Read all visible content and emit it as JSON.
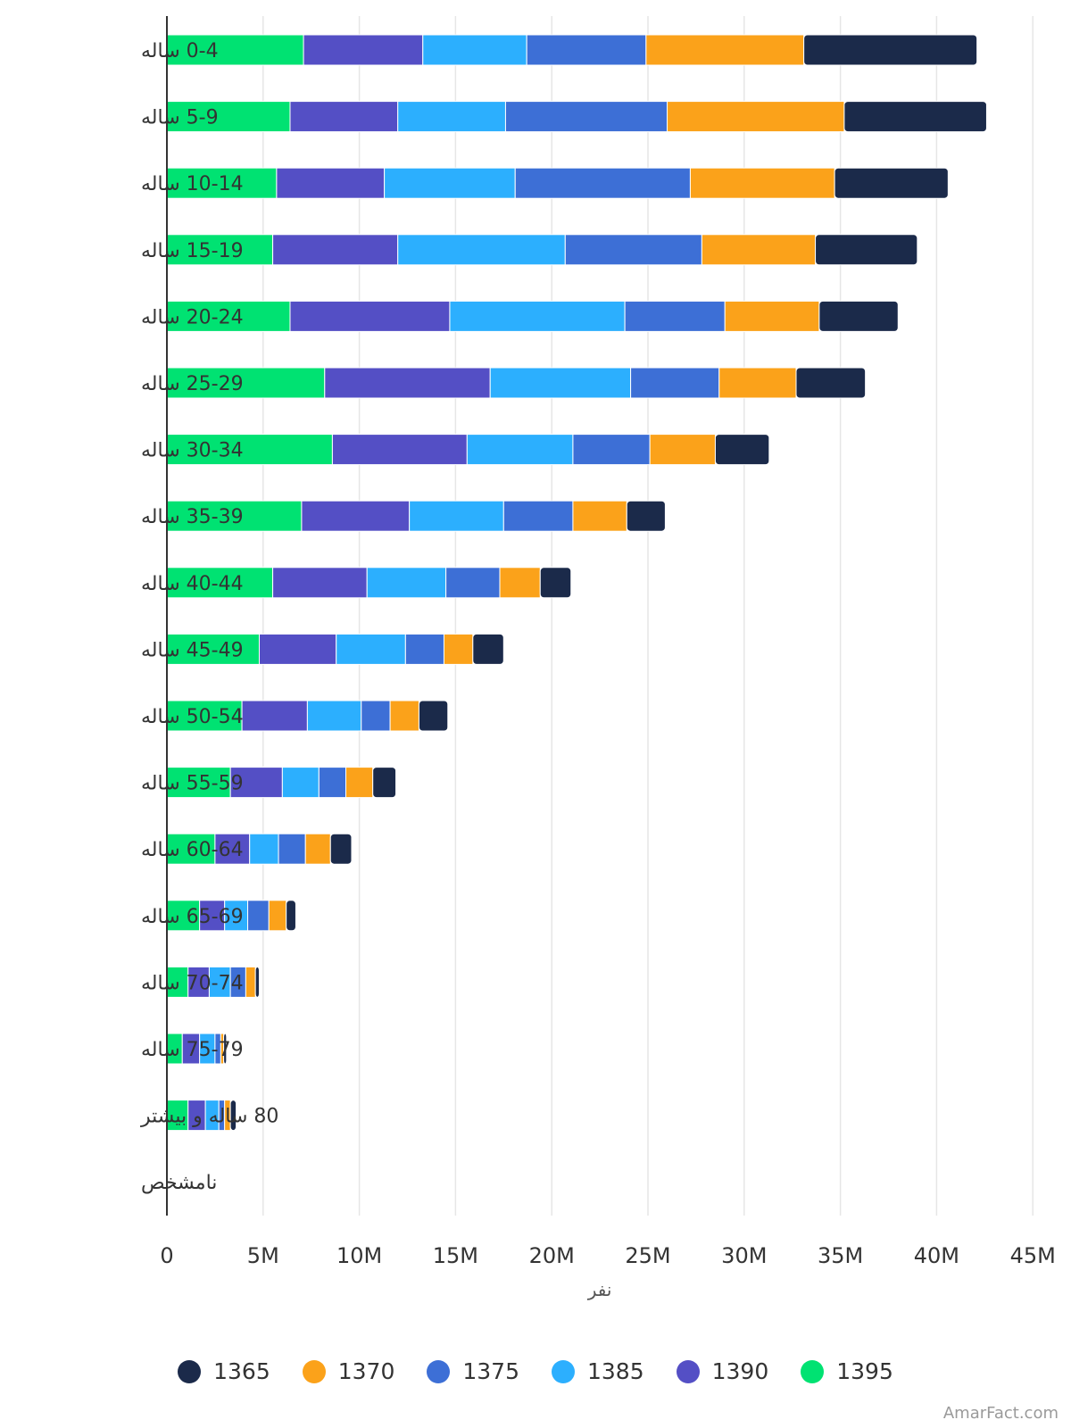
{
  "chart_data": {
    "type": "bar",
    "orientation": "horizontal",
    "stacked": true,
    "categories": [
      "0-4 ساله",
      "5-9 ساله",
      "10-14 ساله",
      "15-19 ساله",
      "20-24 ساله",
      "25-29 ساله",
      "30-34 ساله",
      "35-39 ساله",
      "40-44 ساله",
      "45-49 ساله",
      "50-54 ساله",
      "55-59 ساله",
      "60-64 ساله",
      "65-69 ساله",
      "70-74 ساله",
      "75-79 ساله",
      "80 ساله و بیشتر",
      "نامشخص"
    ],
    "series": [
      {
        "name": "1395",
        "color": "#00e272",
        "values": [
          7.1,
          6.4,
          5.7,
          5.5,
          6.4,
          8.2,
          8.6,
          7.0,
          5.5,
          4.8,
          3.9,
          3.3,
          2.5,
          1.7,
          1.1,
          0.8,
          1.1,
          0
        ]
      },
      {
        "name": "1390",
        "color": "#544fc5",
        "values": [
          6.2,
          5.6,
          5.6,
          6.5,
          8.3,
          8.6,
          7.0,
          5.6,
          4.9,
          4.0,
          3.4,
          2.7,
          1.8,
          1.3,
          1.1,
          0.9,
          0.9,
          0
        ]
      },
      {
        "name": "1385",
        "color": "#2caffe",
        "values": [
          5.4,
          5.6,
          6.8,
          8.7,
          9.1,
          7.3,
          5.5,
          4.9,
          4.1,
          3.6,
          2.8,
          1.9,
          1.5,
          1.2,
          1.1,
          0.8,
          0.7,
          0
        ]
      },
      {
        "name": "1375",
        "color": "#3d6fd6",
        "values": [
          6.2,
          8.4,
          9.1,
          7.1,
          5.2,
          4.6,
          4.0,
          3.6,
          2.8,
          2.0,
          1.5,
          1.4,
          1.4,
          1.1,
          0.8,
          0.3,
          0.3,
          0
        ]
      },
      {
        "name": "1370",
        "color": "#fba21a",
        "values": [
          8.2,
          9.2,
          7.5,
          5.9,
          4.9,
          4.0,
          3.4,
          2.8,
          2.1,
          1.5,
          1.5,
          1.4,
          1.3,
          0.9,
          0.5,
          0.15,
          0.3,
          0
        ]
      },
      {
        "name": "1365",
        "color": "#1b2a4a",
        "values": [
          9.0,
          7.4,
          5.9,
          5.3,
          4.1,
          3.6,
          2.8,
          2.0,
          1.6,
          1.6,
          1.5,
          1.2,
          1.1,
          0.5,
          0.2,
          0.15,
          0.3,
          0
        ]
      }
    ],
    "stack_order": [
      "1395",
      "1390",
      "1385",
      "1375",
      "1370",
      "1365"
    ],
    "xlim": [
      0,
      45
    ],
    "xticks": [
      0,
      5,
      10,
      15,
      20,
      25,
      30,
      35,
      40,
      45
    ],
    "xtick_labels": [
      "0",
      "5M",
      "10M",
      "15M",
      "20M",
      "25M",
      "30M",
      "35M",
      "40M",
      "45M"
    ],
    "xlabel": "نفر",
    "units": "million people",
    "grid": true,
    "legend_position": "bottom",
    "legend_order": [
      "1365",
      "1370",
      "1375",
      "1385",
      "1390",
      "1395"
    ]
  },
  "credit": "AmarFact.com"
}
